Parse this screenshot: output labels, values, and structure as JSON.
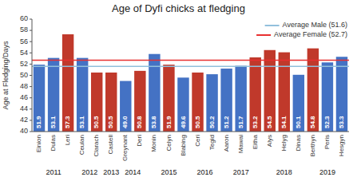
{
  "chart_data": {
    "type": "bar",
    "title": "Age of Dyfi chicks at fledging",
    "ylabel": "Age at Fledging/Days",
    "categories": [
      "Einion",
      "Dulas",
      "Leri",
      "Ceulan",
      "Clarach",
      "Castell",
      "Greynant",
      "Deri",
      "Monin",
      "Celyn",
      "Blabing",
      "Ceri",
      "Tegid",
      "Aaron",
      "Mawai",
      "Eitha",
      "Alys",
      "Helyg",
      "Dinas",
      "Berthyn",
      "Peris",
      "Hesgyn"
    ],
    "years": [
      2011,
      2011,
      2011,
      2012,
      2012,
      2013,
      2014,
      2014,
      2015,
      2015,
      2015,
      2016,
      2016,
      2017,
      2017,
      2017,
      2018,
      2018,
      2018,
      2019,
      2019,
      2019
    ],
    "values": [
      51.9,
      53.1,
      57.3,
      53.1,
      50.5,
      50.5,
      49.0,
      50.8,
      53.8,
      51.9,
      49.6,
      50.5,
      50.2,
      51.2,
      51.7,
      53.2,
      54.5,
      54.1,
      50.1,
      54.8,
      52.3,
      53.3
    ],
    "value_labels": [
      "51.9",
      "53.1",
      "57.3",
      "53.1",
      "50.5",
      "50.5",
      "49.0",
      "50.8",
      "53.8",
      "51.9",
      "49.6",
      "50.5",
      "50.2",
      "51.2",
      "51.7",
      "53.2",
      "54.5",
      "54.1",
      "50.1",
      "54.8",
      "52.3",
      "53.3"
    ],
    "colors": [
      "#4472C4",
      "#4472C4",
      "#C0392B",
      "#4472C4",
      "#C0392B",
      "#C0392B",
      "#4472C4",
      "#C0392B",
      "#4472C4",
      "#C0392B",
      "#4472C4",
      "#C0392B",
      "#4472C4",
      "#4472C4",
      "#4472C4",
      "#C0392B",
      "#C0392B",
      "#C0392B",
      "#4472C4",
      "#C0392B",
      "#4472C4",
      "#4472C4"
    ],
    "ylim": [
      40.0,
      60.0
    ],
    "yticks": [
      40,
      42,
      44,
      46,
      48,
      50,
      52,
      54,
      56,
      58,
      60
    ],
    "data_labels": true,
    "legend": "upper right",
    "reference_lines": [
      {
        "name": "Average Male (51.6)",
        "value": 51.6,
        "color": "#92c0dc"
      },
      {
        "name": "Average Female (52.7)",
        "value": 52.7,
        "color": "#e83030"
      }
    ]
  }
}
